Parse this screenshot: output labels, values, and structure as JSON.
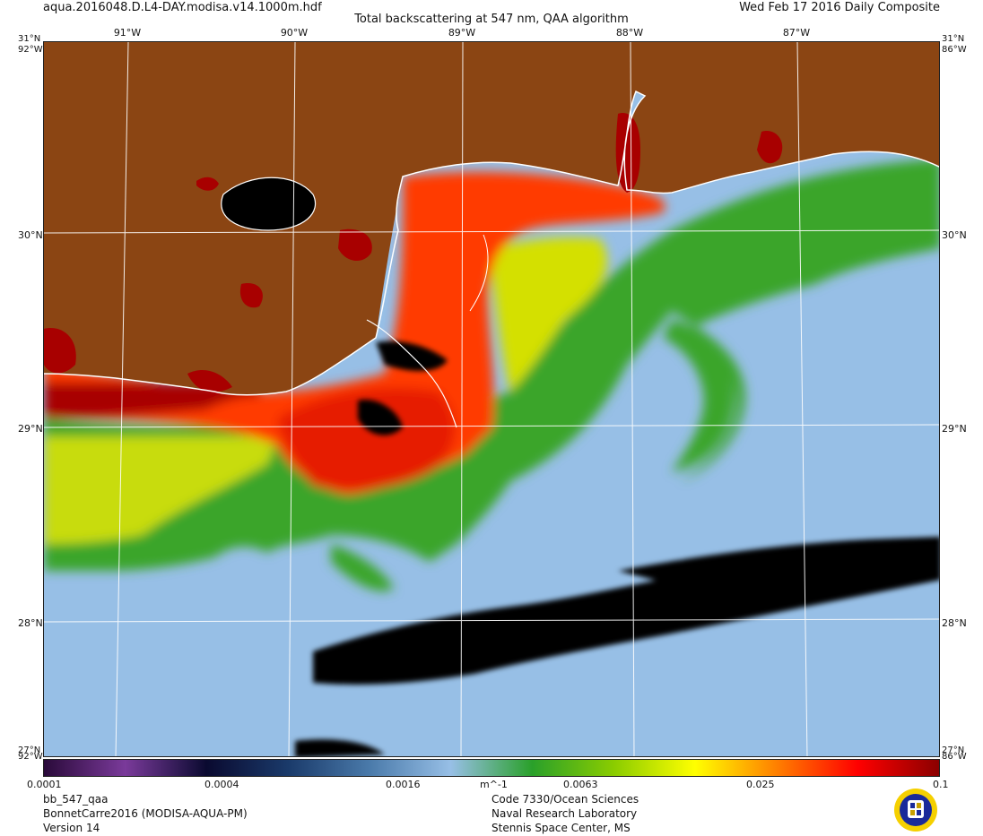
{
  "header": {
    "file_name": "aqua.2016048.D.L4-DAY.modisa.v14.1000m.hdf",
    "date_label": "Wed Feb 17 2016 Daily Composite",
    "title": "Total backscattering at 547 nm, QAA algorithm"
  },
  "map": {
    "lon_labels": [
      "91°W",
      "90°W",
      "89°W",
      "88°W",
      "87°W"
    ],
    "lat_labels": [
      "30°N",
      "29°N",
      "28°N"
    ],
    "corner_labels": {
      "top_left_lat": "31°N",
      "top_left_lon": "92°W",
      "top_right_lat": "31°N",
      "top_right_lon": "86°W",
      "bottom_left_lat": "27°N",
      "bottom_left_lon": "92°W",
      "bottom_right_lat": "27°N",
      "bottom_right_lon": "86°W"
    },
    "colors": {
      "land": "#8B4513",
      "clear_water": "#97BFE6",
      "no_data": "#000000",
      "graticule": "#ffffff"
    }
  },
  "colorbar": {
    "ticks": [
      "0.0001",
      "0.0004",
      "0.0016",
      "0.0063",
      "0.025",
      "0.1"
    ],
    "unit": "m^-1",
    "colors": [
      "#2a0a3a",
      "#7a3a9a",
      "#0a0a30",
      "#1a3a6a",
      "#4a7aaa",
      "#97BFE6",
      "#2aa02a",
      "#8acc00",
      "#ffff00",
      "#ff8000",
      "#ff0000",
      "#8b0000"
    ]
  },
  "footer": {
    "left": [
      "bb_547_qaa",
      "BonnetCarre2016 (MODISA-AQUA-PM)",
      "Version 14"
    ],
    "middle": [
      "Code 7330/Ocean Sciences",
      "Naval Research Laboratory",
      "Stennis Space Center, MS"
    ]
  }
}
